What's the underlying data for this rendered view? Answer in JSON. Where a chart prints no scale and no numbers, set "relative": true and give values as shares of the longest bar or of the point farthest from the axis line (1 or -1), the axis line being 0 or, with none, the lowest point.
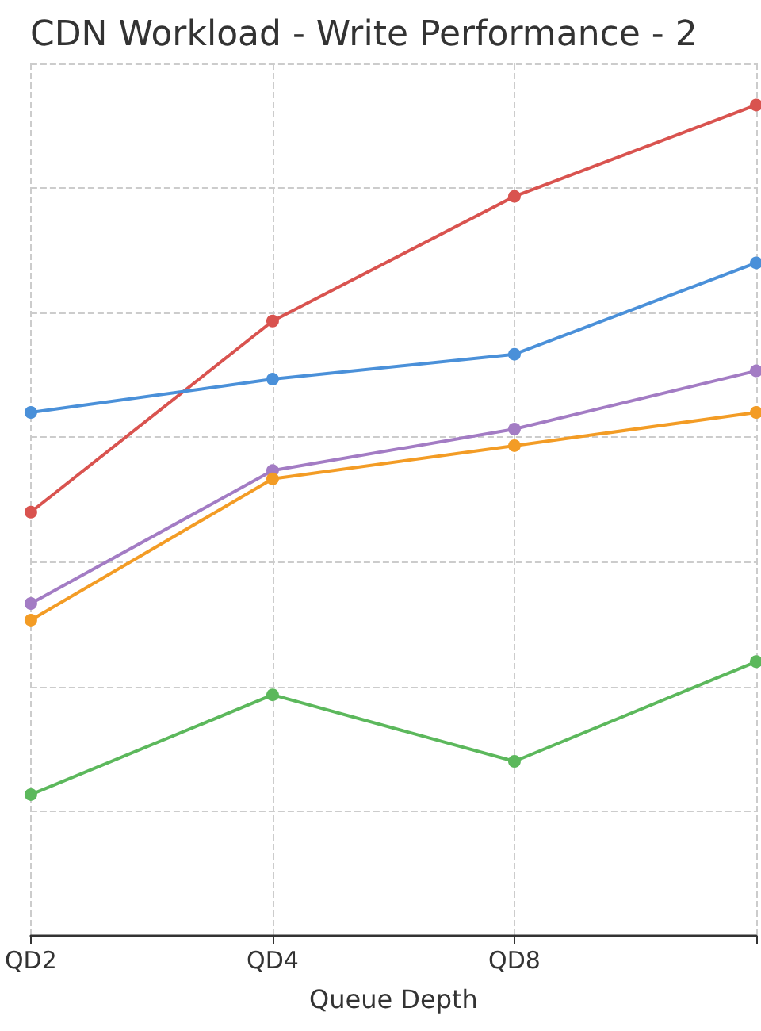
{
  "chart_data": {
    "type": "line",
    "title": "CDN Workload - Write Performance - 2",
    "xlabel": "Queue Depth",
    "categories": [
      "QD2",
      "QD4",
      "QD8",
      null
    ],
    "relative": true,
    "grid": true,
    "marker": "circle",
    "line_style": "solid",
    "series": [
      {
        "color": "#d9534f",
        "values": [
          0.51,
          0.74,
          0.89,
          1.0
        ]
      },
      {
        "color": "#4a90d9",
        "values": [
          0.63,
          0.67,
          0.7,
          0.81
        ]
      },
      {
        "color": "#a37cc4",
        "values": [
          0.4,
          0.56,
          0.61,
          0.68
        ]
      },
      {
        "color": "#f39c25",
        "values": [
          0.38,
          0.55,
          0.59,
          0.63
        ]
      },
      {
        "color": "#5cb85c",
        "values": [
          0.17,
          0.29,
          0.21,
          0.33
        ]
      }
    ]
  }
}
